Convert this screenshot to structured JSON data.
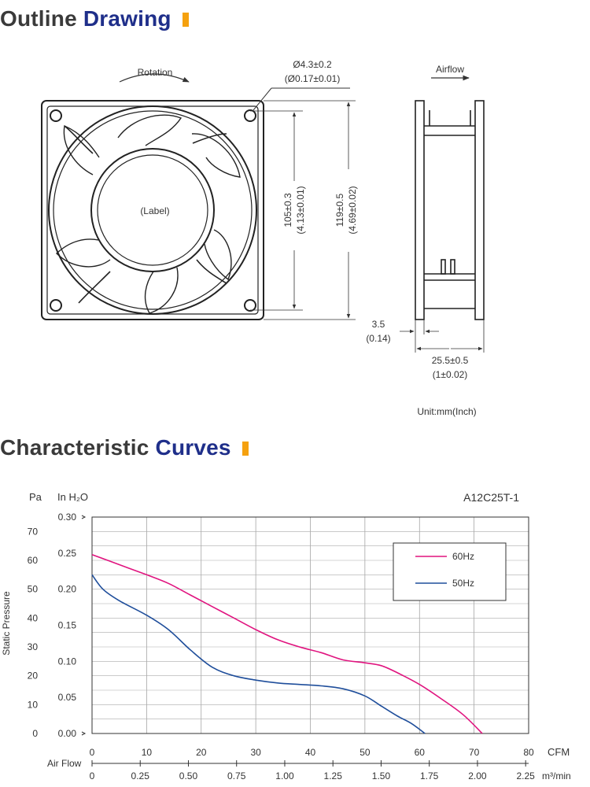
{
  "headings": {
    "outline": {
      "word1": "Outline",
      "word2": "Drawing"
    },
    "curves": {
      "word1": "Characteristic",
      "word2": "Curves"
    }
  },
  "drawing": {
    "rotation_label": "Rotation",
    "airflow_label": "Airflow",
    "hole_dim_mm": "Ø4.3±0.2",
    "hole_dim_in": "(Ø0.17±0.01)",
    "hole_pitch_mm": "105±0.3",
    "hole_pitch_in": "(4.13±0.01)",
    "frame_size_mm": "119±0.5",
    "frame_size_in": "(4.69±0.02)",
    "flange_mm": "3.5",
    "flange_in": "(0.14)",
    "depth_mm": "25.5±0.5",
    "depth_in": "(1±0.02)",
    "label_text": "(Label)",
    "unit_note": "Unit:mm(Inch)"
  },
  "chart_data": {
    "type": "line",
    "title": "A12C25T-1",
    "ylabel": "Static Pressure",
    "y_unit_pa": "Pa",
    "y_unit_inh2o": "In H₂O",
    "xlabel": "Air Flow",
    "x_unit_cfm": "CFM",
    "x_unit_m3": "m³/min",
    "xlim_cfm": [
      0,
      80
    ],
    "ylim_pa": [
      0,
      75
    ],
    "x_ticks_cfm": [
      "0",
      "10",
      "20",
      "30",
      "40",
      "50",
      "60",
      "70",
      "80"
    ],
    "x_ticks_m3": [
      "0",
      "0.25",
      "0.50",
      "0.75",
      "1.00",
      "1.25",
      "1.50",
      "1.75",
      "2.00",
      "2.25"
    ],
    "y_ticks_pa": [
      "0",
      "10",
      "20",
      "30",
      "40",
      "50",
      "60",
      "70"
    ],
    "y_ticks_inh2o": [
      "0.00",
      "0.05",
      "0.10",
      "0.15",
      "0.20",
      "0.25",
      "0.30"
    ],
    "grid": true,
    "legend_position": "top-right",
    "series": [
      {
        "name": "60Hz",
        "color": "#e0147f",
        "x": [
          0,
          5,
          10,
          14,
          18,
          22,
          26,
          30,
          34,
          38,
          42,
          46,
          50,
          53,
          56,
          60,
          64,
          68,
          71.5
        ],
        "y": [
          62,
          58.5,
          55,
          52,
          48,
          44,
          40,
          36,
          32.5,
          30,
          28,
          25.5,
          24.5,
          23.5,
          21,
          17,
          12,
          6.5,
          0
        ]
      },
      {
        "name": "50Hz",
        "color": "#1f4e9b",
        "x": [
          0,
          2,
          5,
          10,
          14,
          18,
          22,
          26,
          30,
          34,
          38,
          42,
          46,
          50,
          53,
          56,
          58.5,
          61
        ],
        "y": [
          55,
          50,
          46,
          41,
          36,
          29,
          23,
          20,
          18.5,
          17.5,
          17,
          16.5,
          15.5,
          13,
          9.5,
          6,
          3.5,
          0
        ]
      }
    ]
  }
}
